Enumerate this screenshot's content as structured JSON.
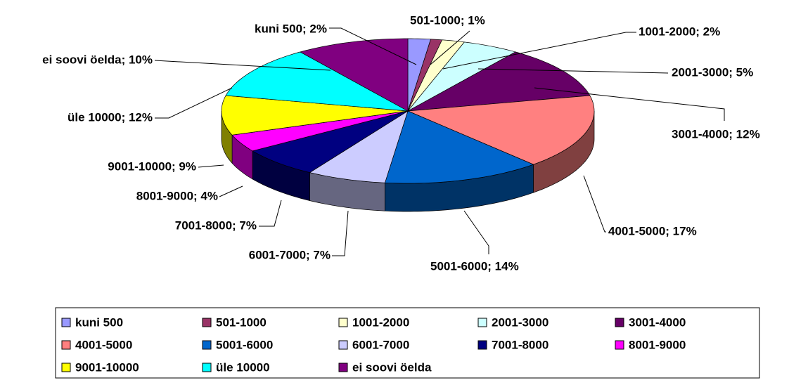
{
  "chart_data": {
    "type": "pie3d",
    "categories": [
      "kuni 500",
      "501-1000",
      "1001-2000",
      "2001-3000",
      "3001-4000",
      "4001-5000",
      "5001-6000",
      "6001-7000",
      "7001-8000",
      "8001-9000",
      "9001-10000",
      "üle 10000",
      "ei soovi öelda"
    ],
    "values": [
      2,
      1,
      2,
      5,
      12,
      17,
      14,
      7,
      7,
      4,
      9,
      12,
      10
    ],
    "value_labels": [
      "kuni 500; 2%",
      "501-1000; 1%",
      "1001-2000; 2%",
      "2001-3000; 5%",
      "3001-4000; 12%",
      "4001-5000; 17%",
      "5001-6000; 14%",
      "6001-7000; 7%",
      "7001-8000; 7%",
      "8001-9000; 4%",
      "9001-10000; 9%",
      "üle 10000; 12%",
      "ei soovi öelda; 10%"
    ],
    "colors": [
      "#9999ff",
      "#993366",
      "#ffffcc",
      "#ccffff",
      "#660066",
      "#ff8080",
      "#0066cc",
      "#ccccff",
      "#000080",
      "#ff00ff",
      "#ffff00",
      "#00ffff",
      "#800080"
    ],
    "legend": "bottom"
  }
}
